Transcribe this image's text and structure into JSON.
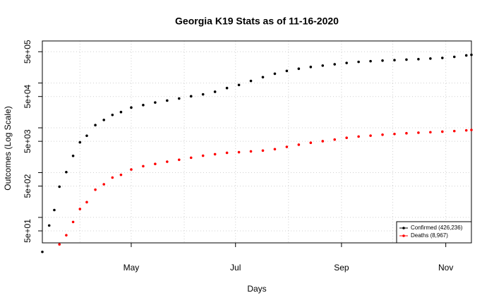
{
  "chart_data": {
    "type": "scatter",
    "title": "Georgia K19 Stats as of 11-16-2020",
    "xlabel": "Days",
    "ylabel": "Outcomes (Log Scale)",
    "log_y": true,
    "grid": true,
    "legend_position": "bottom-right",
    "xlim": [
      70,
      321
    ],
    "xticks": [
      {
        "value": 122,
        "label": "May"
      },
      {
        "value": 183,
        "label": "Jul"
      },
      {
        "value": 245,
        "label": "Sep"
      },
      {
        "value": 306,
        "label": "Nov"
      }
    ],
    "xgrid_minor": [
      92,
      153,
      214,
      275
    ],
    "ylim": [
      27,
      870000
    ],
    "yticks": [
      {
        "value": 50,
        "label": "5e+01"
      },
      {
        "value": 500,
        "label": "5e+02"
      },
      {
        "value": 5000,
        "label": "5e+03"
      },
      {
        "value": 50000,
        "label": "5e+04"
      },
      {
        "value": 500000,
        "label": "5e+05"
      }
    ],
    "yticks_minor": [
      100,
      1000,
      10000,
      100000
    ],
    "series": [
      {
        "name": "Confirmed (426,236)",
        "color": "#000000",
        "x": [
          70,
          74,
          77,
          80,
          84,
          88,
          92,
          96,
          101,
          106,
          111,
          116,
          122,
          129,
          136,
          143,
          150,
          157,
          164,
          171,
          178,
          185,
          192,
          199,
          206,
          213,
          220,
          227,
          234,
          241,
          248,
          255,
          262,
          269,
          276,
          283,
          290,
          297,
          304,
          311,
          318,
          321
        ],
        "values": [
          17,
          66,
          146,
          485,
          1026,
          2366,
          4748,
          6647,
          11483,
          14987,
          19399,
          22491,
          28331,
          32181,
          36772,
          40581,
          45070,
          50621,
          55783,
          63809,
          77210,
          90493,
          111211,
          135183,
          161401,
          186352,
          208695,
          228668,
          245158,
          262372,
          280814,
          296875,
          307754,
          317595,
          324386,
          333410,
          340966,
          352290,
          363838,
          384000,
          414000,
          426236
        ]
      },
      {
        "name": "Deaths (8,967)",
        "color": "#ff0000",
        "x": [
          80,
          84,
          88,
          92,
          96,
          101,
          106,
          111,
          116,
          122,
          129,
          136,
          143,
          150,
          157,
          164,
          171,
          178,
          185,
          192,
          199,
          206,
          213,
          220,
          227,
          234,
          241,
          248,
          255,
          262,
          269,
          276,
          283,
          290,
          297,
          304,
          311,
          318,
          321
        ],
        "values": [
          25,
          40,
          79,
          154,
          219,
          416,
          548,
          775,
          892,
          1174,
          1389,
          1562,
          1752,
          1934,
          2151,
          2385,
          2577,
          2767,
          2860,
          2982,
          3106,
          3335,
          3752,
          4197,
          4642,
          5037,
          5471,
          5984,
          6392,
          6679,
          7021,
          7283,
          7576,
          7782,
          7986,
          8216,
          8452,
          8784,
          8967
        ]
      }
    ]
  }
}
